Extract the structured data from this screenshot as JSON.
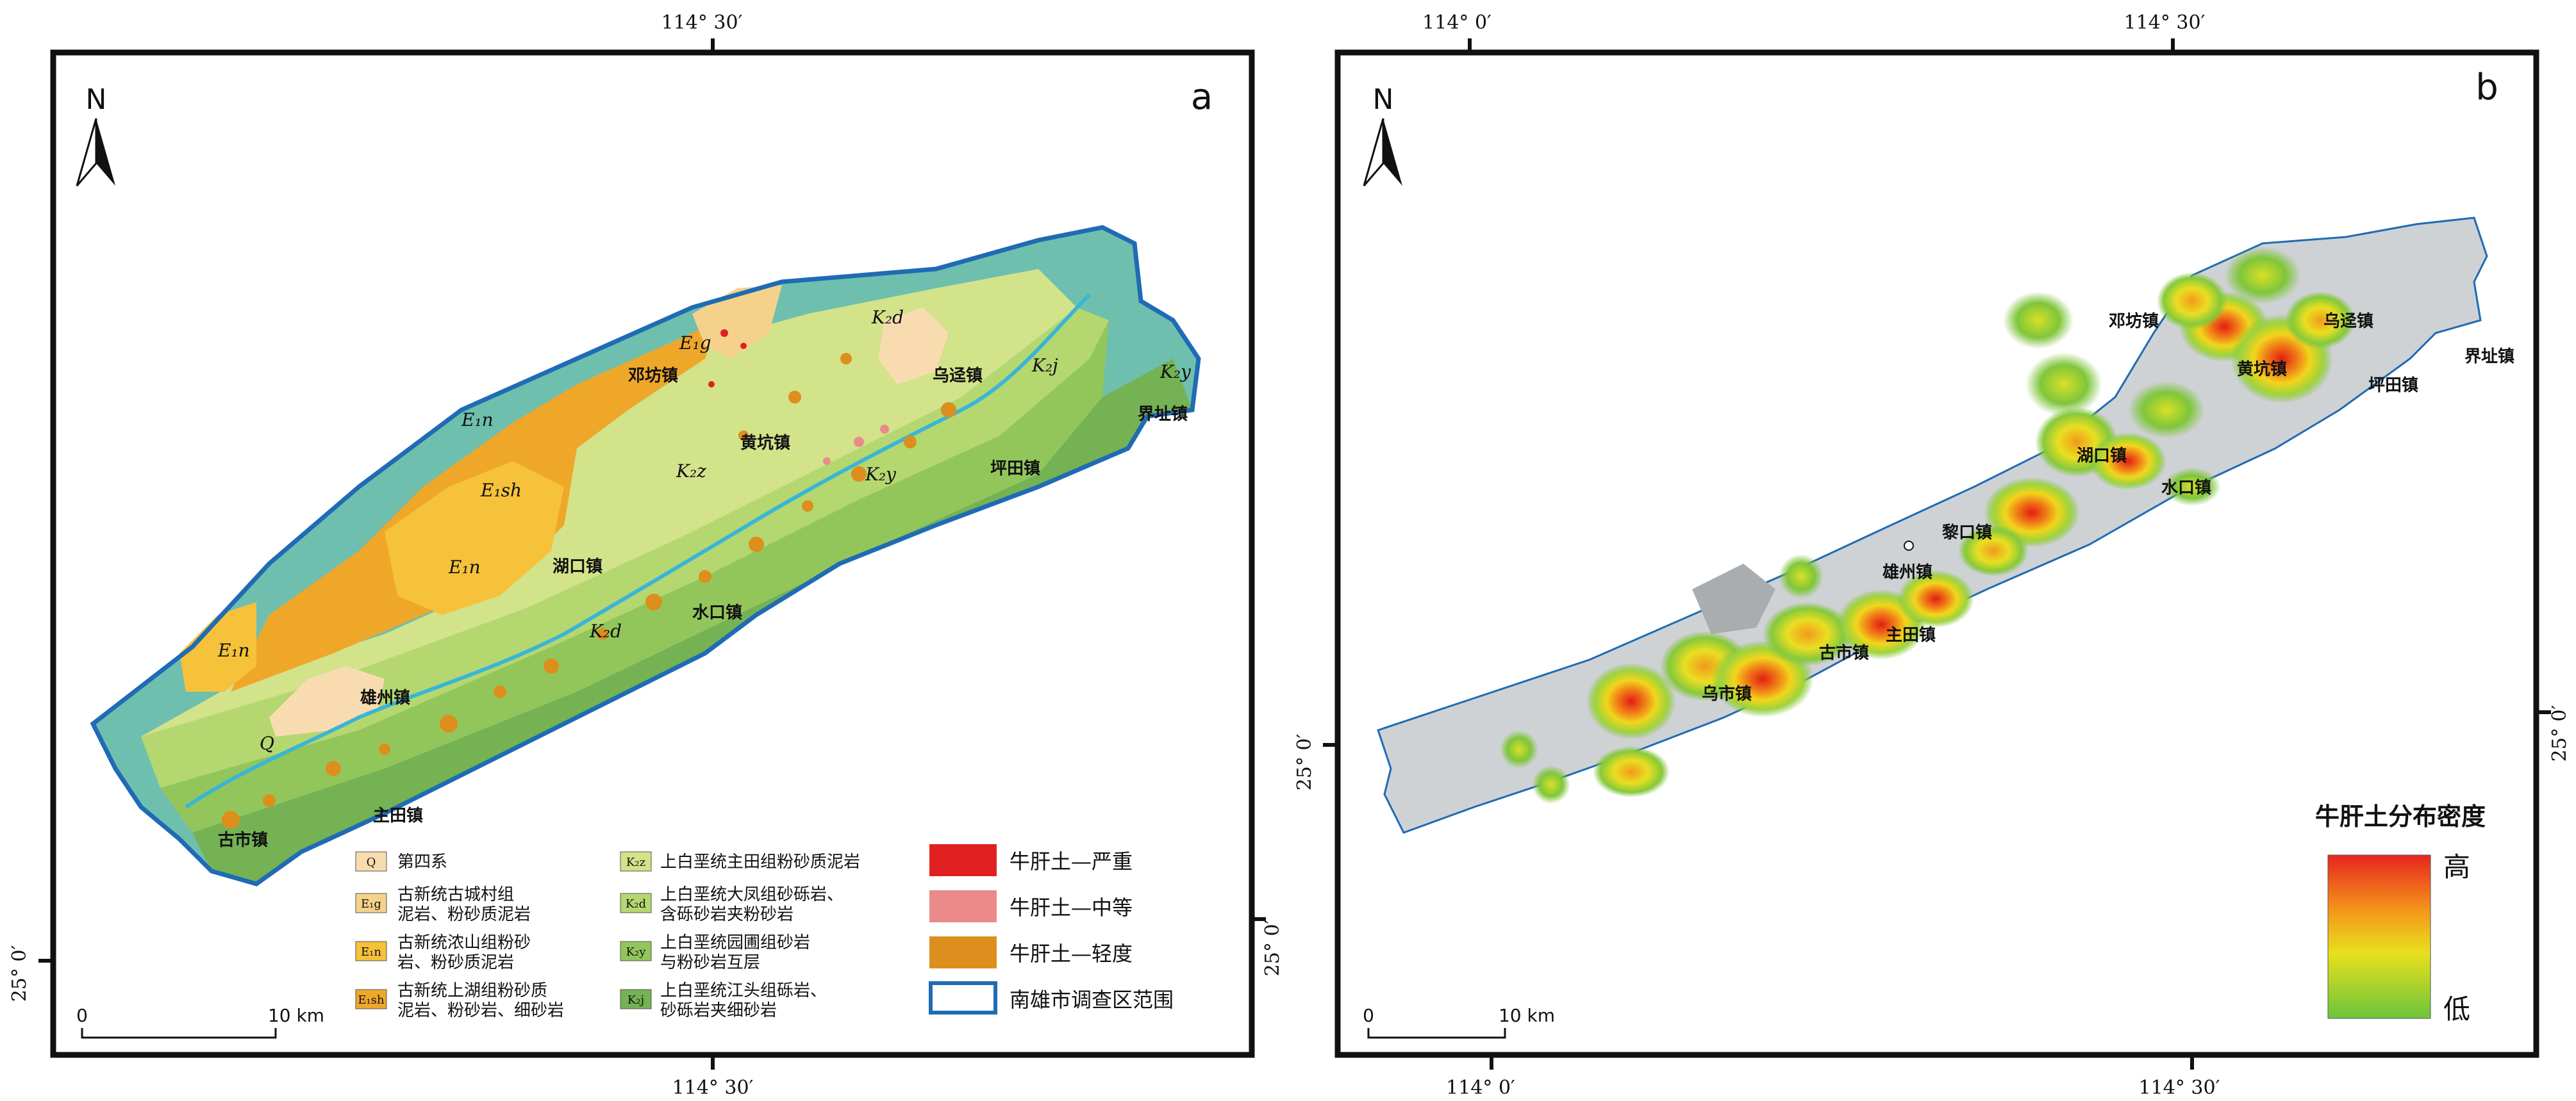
{
  "panel_a": {
    "letter": "a",
    "north": "N",
    "coord_top": "114° 30′",
    "coord_bottom": "114° 30′",
    "coord_left": "25° 0′",
    "coord_right": "25° 0′",
    "scale_zero": "0",
    "scale_end": "10 km",
    "towns": [
      "邓坊镇",
      "乌迳镇",
      "黄坑镇",
      "坪田镇",
      "界址镇",
      "湖口镇",
      "水口镇",
      "雄州镇",
      "主田镇",
      "古市镇"
    ],
    "units": [
      "E₁n",
      "E₁sh",
      "E₁n",
      "E₁n",
      "K₂z",
      "K₂y",
      "K₂d",
      "K₂j",
      "K₂y",
      "K₂d",
      "E₁g",
      "Q"
    ],
    "legend": [
      {
        "code": "Q",
        "text1": "第四系",
        "text2": "",
        "color": "#f8dcb0"
      },
      {
        "code": "E₁g",
        "text1": "古新统古城村组",
        "text2": "泥岩、粉砂质泥岩",
        "color": "#f5d28c"
      },
      {
        "code": "E₁n",
        "text1": "古新统浓山组粉砂",
        "text2": "岩、粉砂质泥岩",
        "color": "#f5c23a"
      },
      {
        "code": "E₁sh",
        "text1": "古新统上湖组粉砂质",
        "text2": "泥岩、粉砂岩、细砂岩",
        "color": "#efa72a"
      },
      {
        "code": "K₂z",
        "text1": "上白垩统主田组粉砂质泥岩",
        "text2": "",
        "color": "#d2e38a"
      },
      {
        "code": "K₂d",
        "text1": "上白垩统大凤组砂砾岩、",
        "text2": "含砾砂岩夹粉砂岩",
        "color": "#b5d770"
      },
      {
        "code": "K₂y",
        "text1": "上白垩统园圃组砂岩",
        "text2": "与粉砂岩互层",
        "color": "#93c65a"
      },
      {
        "code": "K₂j",
        "text1": "上白垩统江头组砾岩、",
        "text2": "砂砾岩夹细砂岩",
        "color": "#74b254"
      },
      {
        "code": "",
        "text1": "牛肝土—严重",
        "text2": "",
        "color": "#e02020"
      },
      {
        "code": "",
        "text1": "牛肝土—中等",
        "text2": "",
        "color": "#ea8a8a"
      },
      {
        "code": "",
        "text1": "牛肝土—轻度",
        "text2": "",
        "color": "#dc8f1c"
      },
      {
        "code": "",
        "text1": "南雄市调查区范围",
        "text2": "",
        "color": "#1f6bb5"
      }
    ]
  },
  "panel_b": {
    "letter": "b",
    "north": "N",
    "coord_top_left": "114° 0′",
    "coord_top_right": "114° 30′",
    "coord_bottom_left": "114° 0′",
    "coord_bottom_right": "114° 30′",
    "coord_left": "25° 0′",
    "coord_right": "25° 0′",
    "scale_zero": "0",
    "scale_end": "10 km",
    "towns": [
      "邓坊镇",
      "乌迳镇",
      "黄坑镇",
      "坪田镇",
      "界址镇",
      "湖口镇",
      "水口镇",
      "黎口镇",
      "雄州镇",
      "主田镇",
      "古市镇",
      "乌市镇"
    ],
    "legend_title": "牛肝土分布密度",
    "legend_high": "高",
    "legend_low": "低"
  }
}
